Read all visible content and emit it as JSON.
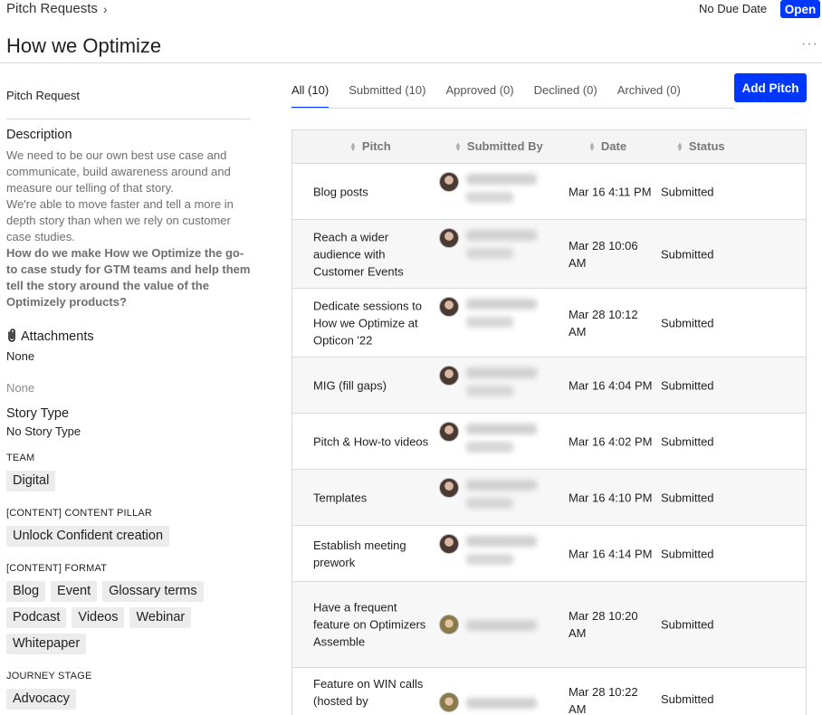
{
  "header": {
    "breadcrumb": "Pitch Requests",
    "due_label": "No Due Date",
    "status_button": "Open",
    "title": "How we Optimize",
    "more": "···"
  },
  "left": {
    "pitch_request_label": "Pitch Request",
    "description_title": "Description",
    "description_lines": [
      "We need to be our own best use case and communicate, build awareness around and measure our telling of that story.",
      "We're able to move faster and tell a more in depth story than when we rely on customer case studies."
    ],
    "description_bold": "How do we make How we Optimize the go-to case study for GTM teams and help them tell the story around the value of the Optimizely products?",
    "attachments_title": "Attachments",
    "attachments_value": "None",
    "none_muted": "None",
    "story_type_title": "Story Type",
    "story_type_value": "No Story Type",
    "team_label": "TEAM",
    "team_tags": [
      "Digital"
    ],
    "pillar_label": "[CONTENT] CONTENT PILLAR",
    "pillar_tags": [
      "Unlock Confident creation"
    ],
    "format_label": "[CONTENT] FORMAT",
    "format_tags": [
      "Blog",
      "Event",
      "Glossary terms",
      "Podcast",
      "Videos",
      "Webinar",
      "Whitepaper"
    ],
    "journey_label": "JOURNEY STAGE",
    "journey_tags": [
      "Advocacy"
    ]
  },
  "tabs": [
    {
      "label": "All (10)",
      "active": true
    },
    {
      "label": "Submitted (10)",
      "active": false
    },
    {
      "label": "Approved (0)",
      "active": false
    },
    {
      "label": "Declined (0)",
      "active": false
    },
    {
      "label": "Archived (0)",
      "active": false
    }
  ],
  "add_pitch_label": "Add Pitch",
  "table": {
    "columns": [
      "Pitch",
      "Submitted By",
      "Date",
      "Status"
    ],
    "rows": [
      {
        "pitch": "Blog posts",
        "date": "Mar 16 4:11 PM",
        "status": "Submitted"
      },
      {
        "pitch": "Reach a wider audience with Customer Events",
        "date": "Mar 28 10:06 AM",
        "status": "Submitted"
      },
      {
        "pitch": "Dedicate sessions to How we Optimize at Opticon '22",
        "date": "Mar 28 10:12 AM",
        "status": "Submitted"
      },
      {
        "pitch": "MIG (fill gaps)",
        "date": "Mar 16 4:04 PM",
        "status": "Submitted"
      },
      {
        "pitch": "Pitch & How-to videos",
        "date": "Mar 16 4:02 PM",
        "status": "Submitted"
      },
      {
        "pitch": "Templates",
        "date": "Mar 16 4:10 PM",
        "status": "Submitted"
      },
      {
        "pitch": "Establish meeting prework",
        "date": "Mar 16 4:14 PM",
        "status": "Submitted"
      },
      {
        "pitch": "Have a frequent feature on Optimizers Assemble",
        "date": "Mar 28 10:20 AM",
        "status": "Submitted"
      },
      {
        "pitch": "Feature on WIN calls (hosted by",
        "date": "Mar 28 10:22 AM",
        "status": "Submitted"
      }
    ]
  },
  "colors": {
    "accent": "#0037ff"
  }
}
